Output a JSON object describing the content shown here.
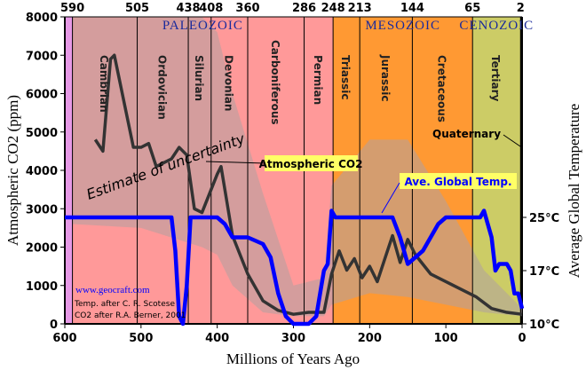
{
  "chart_data": {
    "type": "line",
    "xlabel": "Millions of Years Ago",
    "ylabel": "Atmospheric CO2 (ppm)",
    "y2label": "Average Global Temperature",
    "xlim": [
      600,
      0
    ],
    "ylim": [
      0,
      8000
    ],
    "xticks": [
      600,
      500,
      400,
      300,
      200,
      100,
      0
    ],
    "yticks": [
      0,
      1000,
      2000,
      3000,
      4000,
      5000,
      6000,
      7000,
      8000
    ],
    "y2ticks": [
      {
        "label": "25°C",
        "value": 25
      },
      {
        "label": "17°C",
        "value": 17
      },
      {
        "label": "10°C",
        "value": 10
      }
    ],
    "top_ticks": [
      590,
      505,
      438,
      408,
      360,
      286,
      248,
      213,
      144,
      65,
      2
    ],
    "eras": [
      {
        "name": "PALEOZOIC",
        "from": 590,
        "to": 248
      },
      {
        "name": "MESOZOIC",
        "from": 248,
        "to": 65
      },
      {
        "name": "CENOZOIC",
        "from": 65,
        "to": 2
      }
    ],
    "periods": [
      {
        "name": "Cambrian",
        "from": 590,
        "to": 505,
        "color": "#ff9999"
      },
      {
        "name": "Ordovician",
        "from": 505,
        "to": 438,
        "color": "#ff9999"
      },
      {
        "name": "Silurian",
        "from": 438,
        "to": 408,
        "color": "#ff9999"
      },
      {
        "name": "Devonian",
        "from": 408,
        "to": 360,
        "color": "#ff9999"
      },
      {
        "name": "Carboniferous",
        "from": 360,
        "to": 286,
        "color": "#ff9999"
      },
      {
        "name": "Permian",
        "from": 286,
        "to": 248,
        "color": "#ff9999"
      },
      {
        "name": "Triassic",
        "from": 248,
        "to": 213,
        "color": "#ff9933"
      },
      {
        "name": "Jurassic",
        "from": 213,
        "to": 144,
        "color": "#ff9933"
      },
      {
        "name": "Cretaceous",
        "from": 144,
        "to": 65,
        "color": "#ff9933"
      },
      {
        "name": "Tertiary",
        "from": 65,
        "to": 2,
        "color": "#cccc66"
      }
    ],
    "precambrian_color": "#e699e6",
    "series": [
      {
        "name": "Atmospheric CO2",
        "color": "#333333",
        "units": "ppm",
        "x": [
          560,
          550,
          540,
          535,
          510,
          500,
          490,
          480,
          460,
          450,
          440,
          430,
          420,
          400,
          395,
          380,
          360,
          340,
          320,
          300,
          280,
          260,
          250,
          240,
          230,
          220,
          210,
          200,
          190,
          180,
          170,
          160,
          150,
          140,
          120,
          100,
          80,
          60,
          40,
          20,
          0
        ],
        "y": [
          4800,
          4500,
          6900,
          7000,
          4600,
          4600,
          4700,
          4100,
          4300,
          4600,
          4400,
          3000,
          2900,
          3900,
          4100,
          2300,
          1300,
          600,
          350,
          250,
          300,
          300,
          1300,
          1900,
          1400,
          1700,
          1200,
          1500,
          1100,
          1700,
          2300,
          1600,
          2200,
          1800,
          1300,
          1100,
          900,
          700,
          400,
          300,
          250
        ]
      },
      {
        "name": "Ave. Global Temp.",
        "color": "#0000ff",
        "units": "°C",
        "x": [
          600,
          460,
          455,
          450,
          445,
          440,
          435,
          400,
          390,
          380,
          360,
          340,
          330,
          320,
          310,
          300,
          280,
          270,
          260,
          255,
          250,
          245,
          230,
          170,
          160,
          150,
          140,
          130,
          110,
          100,
          60,
          55,
          50,
          45,
          40,
          35,
          30,
          25,
          20,
          15,
          10,
          5,
          0
        ],
        "y": [
          25,
          25,
          20,
          11,
          10,
          15,
          25,
          25,
          24,
          22,
          22,
          21,
          19,
          14,
          11,
          10,
          10,
          11,
          17,
          18,
          26,
          25,
          25,
          25,
          22,
          18,
          19,
          20,
          24,
          25,
          25,
          25,
          26,
          24,
          22,
          17,
          18,
          18,
          18,
          17,
          14,
          14,
          12
        ]
      }
    ],
    "uncertainty_band": {
      "label": "Estimate of uncertainty",
      "color": "#b0a0a0",
      "x": [
        590,
        500,
        420,
        400,
        380,
        340,
        300,
        260,
        250,
        200,
        150,
        100,
        50,
        0
      ],
      "upper": [
        8000,
        8000,
        8000,
        7600,
        6000,
        3400,
        1000,
        1200,
        3600,
        4800,
        4800,
        3200,
        1400,
        400
      ],
      "lower": [
        2600,
        2500,
        2000,
        1800,
        1000,
        300,
        200,
        200,
        500,
        800,
        700,
        500,
        300,
        200
      ]
    },
    "annotations": {
      "co2_label": "Atmospheric CO2",
      "temp_label": "Ave. Global Temp.",
      "quaternary": "Quaternary",
      "site": "www.geocraft.com",
      "credit1": "Temp. after C. R. Scotese",
      "credit2": "CO2 after R.A. Berner, 2001"
    }
  }
}
